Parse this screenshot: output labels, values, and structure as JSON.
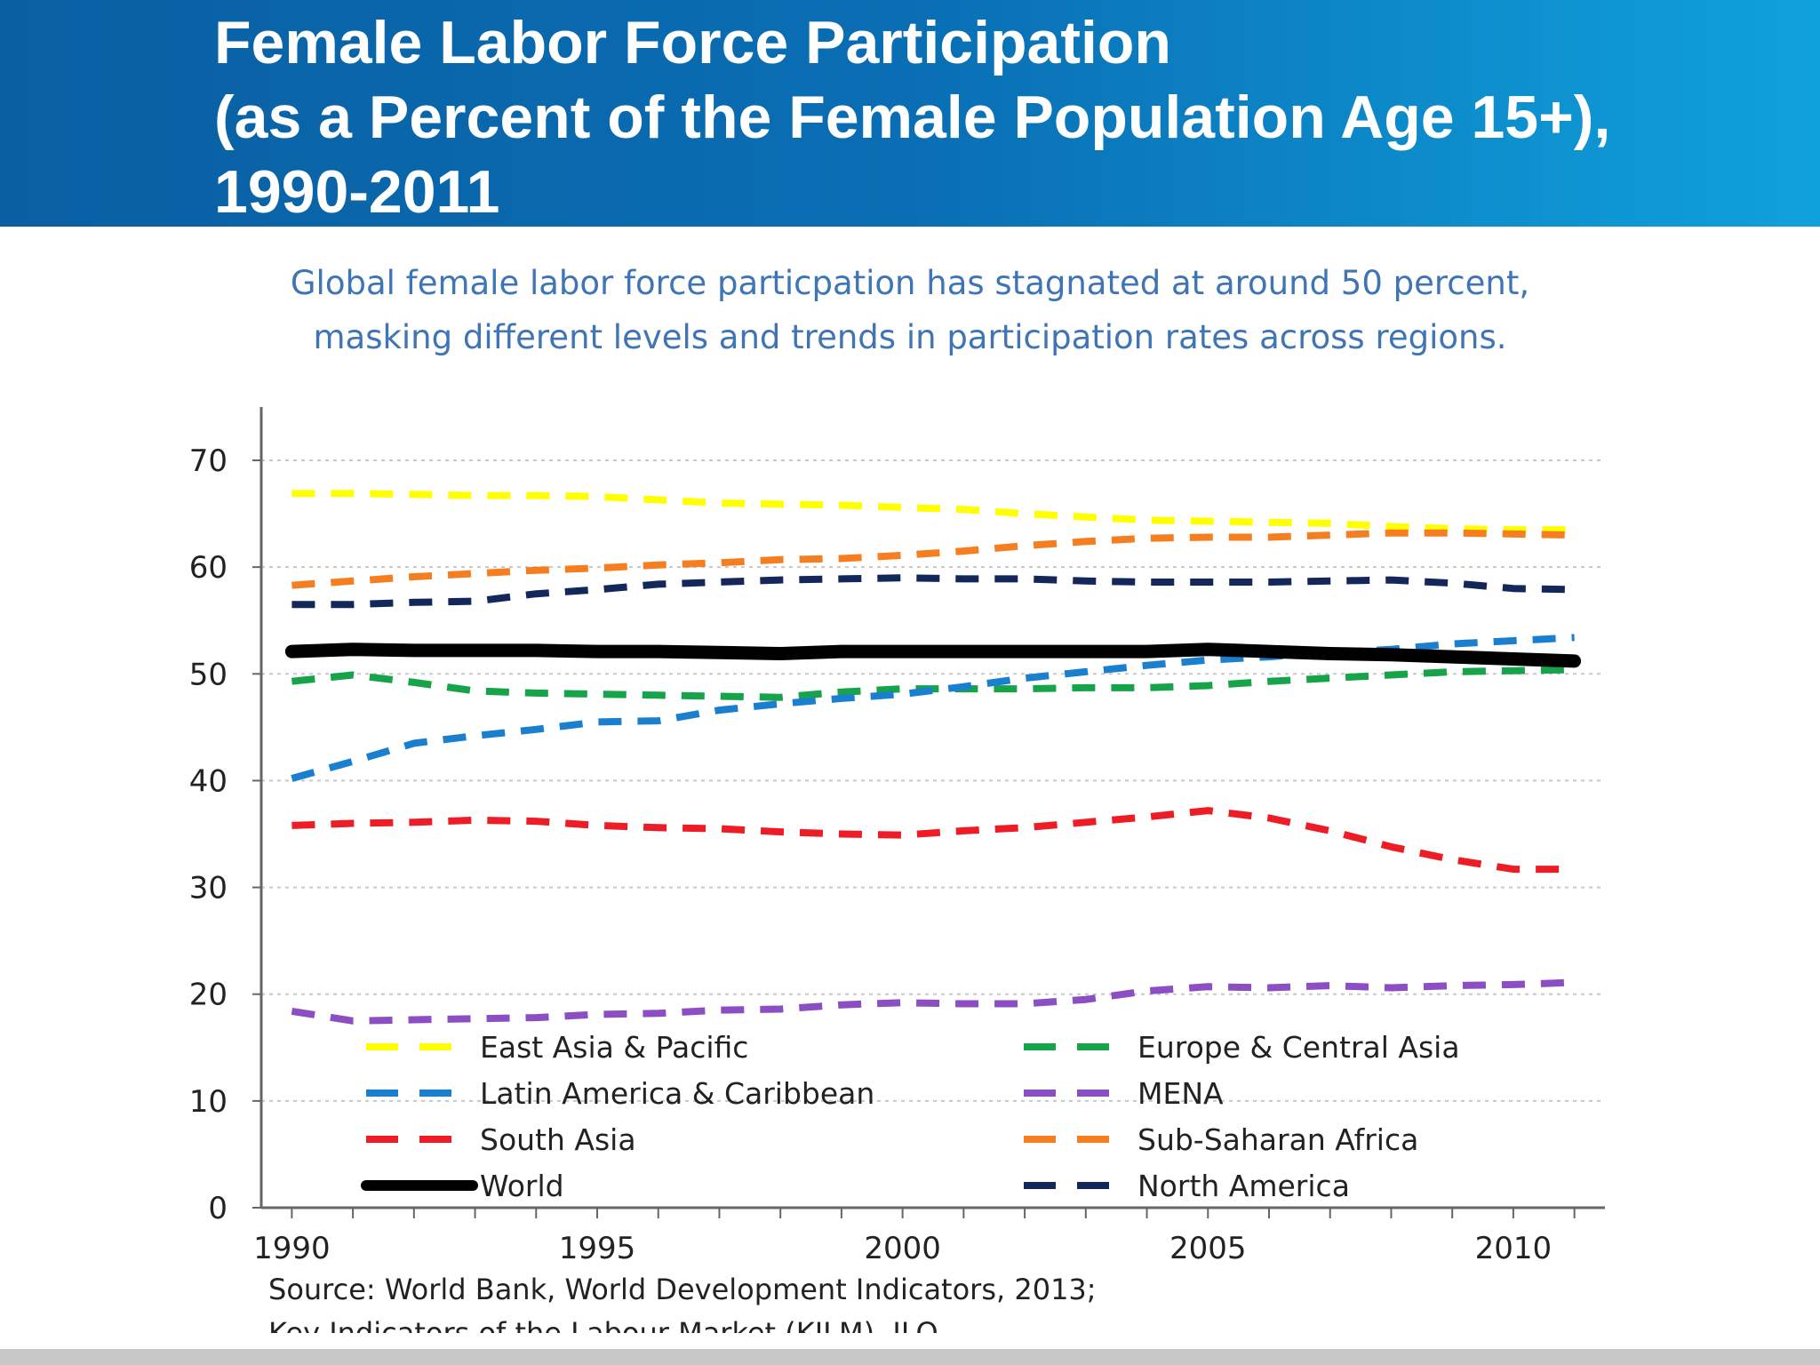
{
  "header": {
    "title_lines": [
      "Female Labor Force Participation",
      "(as a Percent of the Female Population Age 15+),",
      "1990-2011"
    ],
    "background_colors": [
      "#0a5fa2",
      "#0fa1dc"
    ]
  },
  "subtitle_lines": [
    "Global female labor force particpation has stagnated at around 50 percent,",
    "masking different levels and trends in participation rates across regions."
  ],
  "source_lines": [
    "Source:  World Bank, World Development Indicators, 2013;",
    "Key Indicators of the Labour Market (KILM), ILO"
  ],
  "chart_data": {
    "type": "line",
    "x": [
      1990,
      1991,
      1992,
      1993,
      1994,
      1995,
      1996,
      1997,
      1998,
      1999,
      2000,
      2001,
      2002,
      2003,
      2004,
      2005,
      2006,
      2007,
      2008,
      2009,
      2010,
      2011
    ],
    "xticks": [
      "1990",
      "1995",
      "2000",
      "2005",
      "2010"
    ],
    "yticks": [
      "0",
      "10",
      "20",
      "30",
      "40",
      "50",
      "60",
      "70"
    ],
    "ylim": [
      0,
      70
    ],
    "xlim": [
      1989.5,
      2011.5
    ],
    "grid": "horizontal dotted",
    "legend": "bottom, two columns inside plot",
    "series": [
      {
        "name": "East Asia & Pacific",
        "color": "#ffff00",
        "style": "dashed",
        "values": [
          66.9,
          66.9,
          66.8,
          66.7,
          66.7,
          66.6,
          66.3,
          66.0,
          65.9,
          65.8,
          65.6,
          65.4,
          65.0,
          64.7,
          64.4,
          64.3,
          64.2,
          64.1,
          63.8,
          63.6,
          63.5,
          63.5
        ]
      },
      {
        "name": "Europe & Central Asia",
        "color": "#16a34a",
        "style": "dashed",
        "values": [
          49.3,
          49.9,
          49.2,
          48.4,
          48.2,
          48.1,
          48.0,
          47.9,
          47.8,
          48.3,
          48.6,
          48.6,
          48.6,
          48.7,
          48.7,
          48.9,
          49.3,
          49.6,
          49.9,
          50.2,
          50.3,
          50.4
        ]
      },
      {
        "name": "Latin America & Caribbean",
        "color": "#1b7fd0",
        "style": "dashed",
        "values": [
          40.2,
          41.8,
          43.5,
          44.2,
          44.8,
          45.5,
          45.6,
          46.6,
          47.2,
          47.7,
          48.1,
          48.8,
          49.6,
          50.2,
          50.8,
          51.3,
          51.6,
          52.0,
          52.3,
          52.8,
          53.1,
          53.4
        ]
      },
      {
        "name": "MENA",
        "color": "#8b4fc3",
        "style": "dashed",
        "values": [
          18.4,
          17.5,
          17.6,
          17.7,
          17.8,
          18.1,
          18.2,
          18.5,
          18.6,
          19.0,
          19.2,
          19.1,
          19.1,
          19.5,
          20.3,
          20.7,
          20.6,
          20.8,
          20.6,
          20.8,
          20.9,
          21.1
        ]
      },
      {
        "name": "South Asia",
        "color": "#ee1c25",
        "style": "dashed",
        "values": [
          35.8,
          36.0,
          36.1,
          36.3,
          36.2,
          35.8,
          35.6,
          35.5,
          35.2,
          35.0,
          34.9,
          35.3,
          35.6,
          36.1,
          36.6,
          37.2,
          36.5,
          35.3,
          33.8,
          32.6,
          31.7,
          31.7
        ]
      },
      {
        "name": "Sub-Saharan Africa",
        "color": "#f57f20",
        "style": "dashed",
        "values": [
          58.3,
          58.7,
          59.1,
          59.4,
          59.7,
          59.9,
          60.2,
          60.4,
          60.7,
          60.8,
          61.1,
          61.5,
          62.0,
          62.4,
          62.7,
          62.8,
          62.8,
          63.0,
          63.2,
          63.2,
          63.1,
          63.0
        ]
      },
      {
        "name": "World",
        "color": "#000000",
        "style": "solid",
        "values": [
          52.1,
          52.3,
          52.2,
          52.2,
          52.2,
          52.1,
          52.1,
          52.0,
          51.9,
          52.1,
          52.1,
          52.1,
          52.1,
          52.1,
          52.1,
          52.3,
          52.1,
          51.9,
          51.8,
          51.6,
          51.4,
          51.2
        ]
      },
      {
        "name": "North America",
        "color": "#13275b",
        "style": "dashed",
        "values": [
          56.5,
          56.5,
          56.7,
          56.8,
          57.5,
          57.9,
          58.4,
          58.6,
          58.8,
          58.9,
          59.0,
          58.9,
          58.9,
          58.7,
          58.6,
          58.6,
          58.6,
          58.7,
          58.8,
          58.5,
          58.0,
          57.9
        ]
      }
    ],
    "legend_order": [
      "East Asia & Pacific",
      "Latin America & Caribbean",
      "South Asia",
      "World",
      "Europe & Central Asia",
      "MENA",
      "Sub-Saharan Africa",
      "North America"
    ]
  }
}
